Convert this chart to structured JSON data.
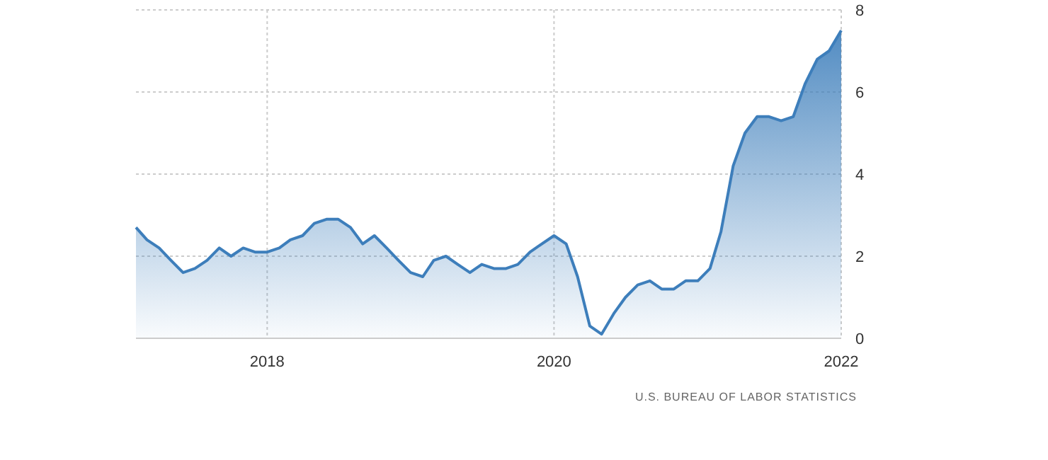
{
  "chart_data": {
    "type": "area",
    "x": [
      "2017-02",
      "2017-03",
      "2017-04",
      "2017-05",
      "2017-06",
      "2017-07",
      "2017-08",
      "2017-09",
      "2017-10",
      "2017-11",
      "2017-12",
      "2018-01",
      "2018-02",
      "2018-03",
      "2018-04",
      "2018-05",
      "2018-06",
      "2018-07",
      "2018-08",
      "2018-09",
      "2018-10",
      "2018-11",
      "2018-12",
      "2019-01",
      "2019-02",
      "2019-03",
      "2019-04",
      "2019-05",
      "2019-06",
      "2019-07",
      "2019-08",
      "2019-09",
      "2019-10",
      "2019-11",
      "2019-12",
      "2020-01",
      "2020-02",
      "2020-03",
      "2020-04",
      "2020-05",
      "2020-06",
      "2020-07",
      "2020-08",
      "2020-09",
      "2020-10",
      "2020-11",
      "2020-12",
      "2021-01",
      "2021-02",
      "2021-03",
      "2021-04",
      "2021-05",
      "2021-06",
      "2021-07",
      "2021-08",
      "2021-09",
      "2021-10",
      "2021-11",
      "2021-12",
      "2022-01"
    ],
    "series": [
      {
        "color": "#3d7ebb",
        "values": [
          2.7,
          2.4,
          2.2,
          1.9,
          1.6,
          1.7,
          1.9,
          2.2,
          2.0,
          2.2,
          2.1,
          2.1,
          2.2,
          2.4,
          2.5,
          2.8,
          2.9,
          2.9,
          2.7,
          2.3,
          2.5,
          2.2,
          1.9,
          1.6,
          1.5,
          1.9,
          2.0,
          1.8,
          1.6,
          1.8,
          1.7,
          1.7,
          1.8,
          2.1,
          2.3,
          2.5,
          2.3,
          1.5,
          0.3,
          0.1,
          0.6,
          1.0,
          1.3,
          1.4,
          1.2,
          1.2,
          1.4,
          1.4,
          1.7,
          2.6,
          4.2,
          5.0,
          5.4,
          5.4,
          5.3,
          5.4,
          6.2,
          6.8,
          7.0,
          7.5
        ]
      }
    ],
    "xlim": [
      "2017-02",
      "2022-01"
    ],
    "xticks": [
      "2018",
      "2020",
      "2022"
    ],
    "ylim": [
      0,
      8
    ],
    "yticks": [
      0,
      2,
      4,
      6,
      8
    ],
    "grid": true,
    "annotations": [
      "U.S. BUREAU OF LABOR STATISTICS"
    ]
  }
}
